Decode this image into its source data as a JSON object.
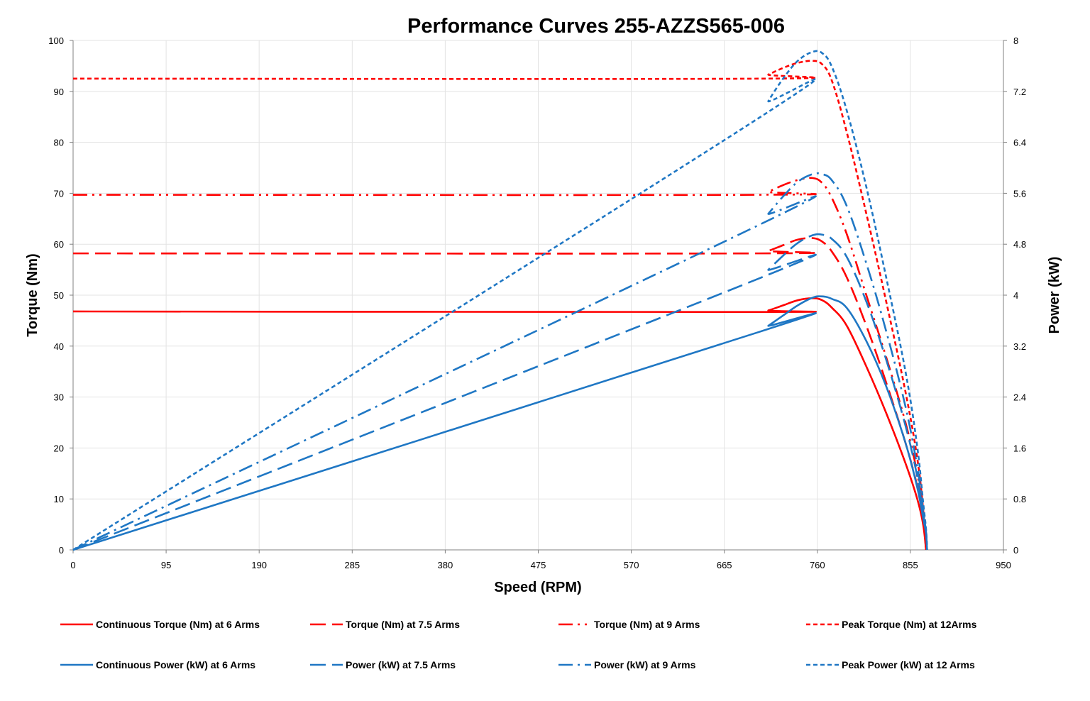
{
  "chart_data": {
    "type": "line",
    "title": "Performance Curves 255-AZZS565-006",
    "xlabel": "Speed (RPM)",
    "ylabel": "Torque (Nm)",
    "y2label": "Power (kW)",
    "xlim": [
      0,
      950
    ],
    "ylim": [
      0,
      100
    ],
    "y2lim": [
      0,
      8
    ],
    "xticks": [
      "0",
      "95",
      "190",
      "285",
      "380",
      "475",
      "570",
      "665",
      "760",
      "855",
      "950"
    ],
    "yticks": [
      "0",
      "10",
      "20",
      "30",
      "40",
      "50",
      "60",
      "70",
      "80",
      "90",
      "100"
    ],
    "y2ticks": [
      "0",
      "0.8",
      "1.6",
      "2.4",
      "3.2",
      "4",
      "4.8",
      "5.6",
      "6.4",
      "7.2",
      "8"
    ],
    "grid": true,
    "legend_position": "bottom",
    "series": [
      {
        "name": "Continuous Torque (Nm) at 6 Arms",
        "axis": "left",
        "color": "#ff0000",
        "dash": "solid",
        "x": [
          0,
          700,
          710,
          725,
          740,
          755,
          765,
          775,
          790,
          810,
          830,
          850,
          862,
          868,
          871
        ],
        "y": [
          46.8,
          46.7,
          47.0,
          48.0,
          49.0,
          49.4,
          49.0,
          47.5,
          44.0,
          36.0,
          27.0,
          17.0,
          10.0,
          5.0,
          0
        ]
      },
      {
        "name": "Torque (Nm) at 7.5 Arms",
        "axis": "left",
        "color": "#ff0000",
        "dash": "long-dash",
        "x": [
          0,
          700,
          710,
          725,
          740,
          755,
          765,
          775,
          790,
          810,
          830,
          850,
          862,
          868,
          871
        ],
        "y": [
          58.2,
          58.2,
          58.7,
          59.8,
          60.9,
          61.2,
          60.5,
          58.5,
          53.5,
          44.0,
          33.0,
          21.0,
          12.5,
          6.0,
          0
        ]
      },
      {
        "name": "Torque (Nm) at 9 Arms",
        "axis": "left",
        "color": "#ff0000",
        "dash": "dash-dot-dot",
        "x": [
          0,
          700,
          710,
          725,
          740,
          755,
          765,
          775,
          790,
          810,
          830,
          850,
          862,
          868,
          871
        ],
        "y": [
          69.7,
          69.7,
          70.3,
          71.6,
          72.6,
          73.0,
          72.0,
          69.0,
          62.0,
          50.0,
          38.0,
          25.0,
          15.0,
          7.0,
          0
        ]
      },
      {
        "name": "Peak Torque (Nm) at 12Arms",
        "axis": "left",
        "color": "#ff0000",
        "dash": "short-dash",
        "x": [
          0,
          700,
          710,
          725,
          740,
          755,
          765,
          775,
          790,
          810,
          830,
          850,
          862,
          868,
          871
        ],
        "y": [
          92.5,
          92.5,
          93.3,
          94.6,
          95.6,
          96.0,
          95.3,
          92.0,
          82.0,
          66.0,
          49.0,
          31.0,
          18.0,
          8.0,
          0
        ]
      },
      {
        "name": "Continuous Power (kW) at 6 Arms",
        "axis": "right",
        "color": "#1f77c4",
        "dash": "solid",
        "x": [
          0,
          700,
          710,
          725,
          740,
          755,
          765,
          775,
          790,
          810,
          830,
          850,
          862,
          868,
          871,
          872
        ],
        "y": [
          0,
          3.42,
          3.52,
          3.68,
          3.84,
          3.96,
          3.98,
          3.94,
          3.8,
          3.28,
          2.58,
          1.68,
          0.98,
          0.5,
          0.25,
          0
        ]
      },
      {
        "name": "Power (kW) at 7.5 Arms",
        "axis": "right",
        "color": "#1f77c4",
        "dash": "long-dash",
        "x": [
          0,
          700,
          710,
          725,
          740,
          755,
          765,
          775,
          790,
          810,
          830,
          850,
          862,
          868,
          871,
          872
        ],
        "y": [
          0,
          4.26,
          4.4,
          4.62,
          4.82,
          4.94,
          4.95,
          4.88,
          4.6,
          3.9,
          3.0,
          1.95,
          1.15,
          0.55,
          0.25,
          0
        ]
      },
      {
        "name": "Power (kW) at 9 Arms",
        "axis": "right",
        "color": "#1f77c4",
        "dash": "dash-dot",
        "x": [
          0,
          700,
          710,
          725,
          740,
          755,
          765,
          775,
          790,
          810,
          830,
          850,
          862,
          868,
          871,
          872
        ],
        "y": [
          0,
          5.1,
          5.28,
          5.55,
          5.78,
          5.9,
          5.9,
          5.8,
          5.4,
          4.5,
          3.45,
          2.25,
          1.3,
          0.62,
          0.28,
          0
        ]
      },
      {
        "name": "Peak Power (kW) at 12 Arms",
        "axis": "right",
        "color": "#1f77c4",
        "dash": "short-dash",
        "x": [
          0,
          700,
          710,
          725,
          740,
          755,
          765,
          775,
          790,
          810,
          830,
          850,
          862,
          868,
          871,
          872
        ],
        "y": [
          0,
          6.78,
          7.05,
          7.4,
          7.68,
          7.82,
          7.8,
          7.58,
          6.9,
          5.7,
          4.3,
          2.8,
          1.62,
          0.75,
          0.32,
          0
        ]
      }
    ]
  }
}
